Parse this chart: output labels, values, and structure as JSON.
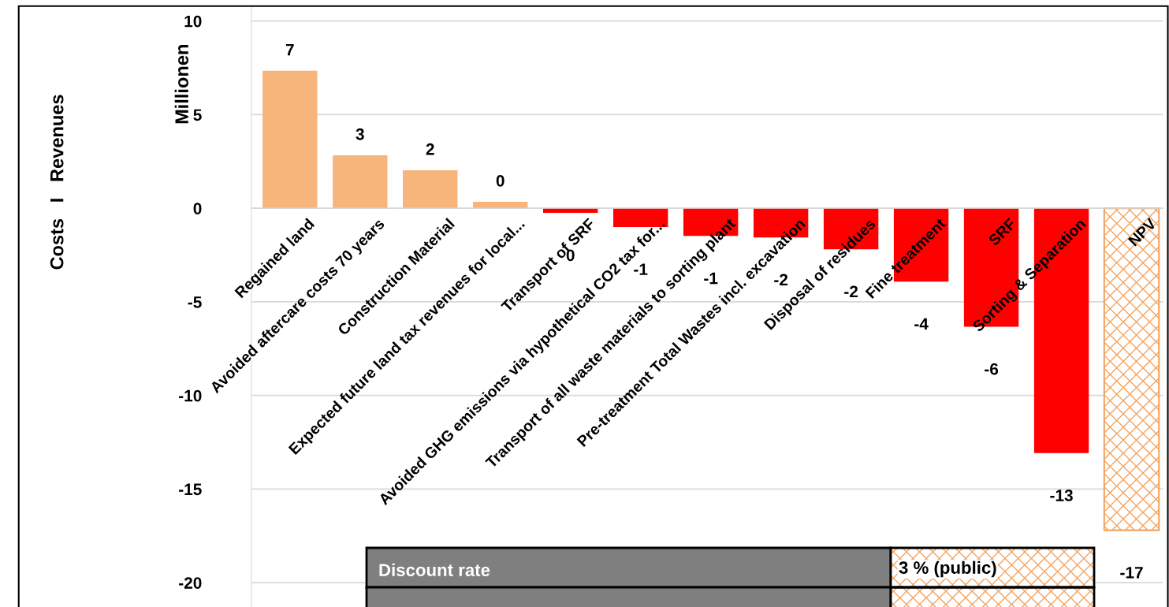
{
  "chart_data": {
    "type": "bar",
    "ylabel": "Millionen",
    "categories": [
      "Regained land",
      "Avoided aftercare costs 70 years",
      "Construction Material",
      "Expected future land tax revenues for local...",
      "Transport of SRF",
      "Avoided GHG emissions via hypothetical CO2 tax for...",
      "Transport of all waste materials to sorting plant",
      "Pre-treatment Total Wastes incl. excavation",
      "Disposal of residues",
      "Fine treatment",
      "SRF",
      "Sorting & Separation",
      "NPV"
    ],
    "series": [
      {
        "values": [
          7.34,
          2.83,
          2.03,
          0.34,
          -0.25,
          -1.0,
          -1.48,
          -1.56,
          -2.19,
          -3.92,
          -6.33,
          -13.08,
          null
        ],
        "colors": [
          "#f7b57c",
          "#f7b57c",
          "#f7b57c",
          "#f7b57c",
          "#ff0000",
          "#ff0000",
          "#ff0000",
          "#ff0000",
          "#ff0000",
          "#ff0000",
          "#ff0000",
          "#ff0000",
          null
        ],
        "value_labels": [
          "7",
          "3",
          "2",
          "0",
          "0",
          "-1",
          "-1",
          "-2",
          "-2",
          "-4",
          "-6",
          "-13",
          null
        ]
      },
      {
        "color": "#f4a460",
        "values": [
          null,
          null,
          null,
          null,
          null,
          null,
          null,
          null,
          null,
          null,
          null,
          null,
          -17.2
        ],
        "value_labels": [
          null,
          null,
          null,
          null,
          null,
          null,
          null,
          null,
          null,
          null,
          null,
          null,
          "-17"
        ]
      }
    ],
    "ylim": [
      -21.3,
      10.8
    ],
    "yticks": [
      -20,
      -15,
      -10,
      -5,
      0,
      5,
      10
    ],
    "grid": "y",
    "annotations": [
      "Costs   I   Revenues",
      "Discount rate",
      "3 % (public)"
    ]
  }
}
